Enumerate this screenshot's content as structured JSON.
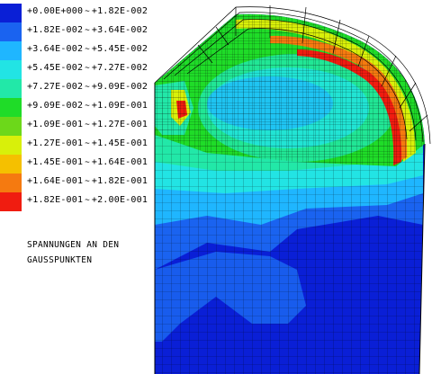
{
  "legend": {
    "items": [
      {
        "from": "+0.00E+000",
        "to": "+1.82E-002",
        "color": "#0a1fd6"
      },
      {
        "from": "+1.82E-002",
        "to": "+3.64E-002",
        "color": "#1a63f0"
      },
      {
        "from": "+3.64E-002",
        "to": "+5.45E-002",
        "color": "#1fb6ff"
      },
      {
        "from": "+5.45E-002",
        "to": "+7.27E-002",
        "color": "#22e4e4"
      },
      {
        "from": "+7.27E-002",
        "to": "+9.09E-002",
        "color": "#22e8a8"
      },
      {
        "from": "+9.09E-002",
        "to": "+1.09E-001",
        "color": "#1fdc28"
      },
      {
        "from": "+1.09E-001",
        "to": "+1.27E-001",
        "color": "#6cd81a"
      },
      {
        "from": "+1.27E-001",
        "to": "+1.45E-001",
        "color": "#d8f00a"
      },
      {
        "from": "+1.45E-001",
        "to": "+1.64E-001",
        "color": "#f5c000"
      },
      {
        "from": "+1.64E-001",
        "to": "+1.82E-001",
        "color": "#f57a10"
      },
      {
        "from": "+1.82E-001",
        "to": "+2.00E-001",
        "color": "#f01c10"
      }
    ],
    "separator": "~"
  },
  "caption": {
    "line1": "SPANNUNGEN AN DEN",
    "line2": "GAUSSPUNKTEN"
  }
}
